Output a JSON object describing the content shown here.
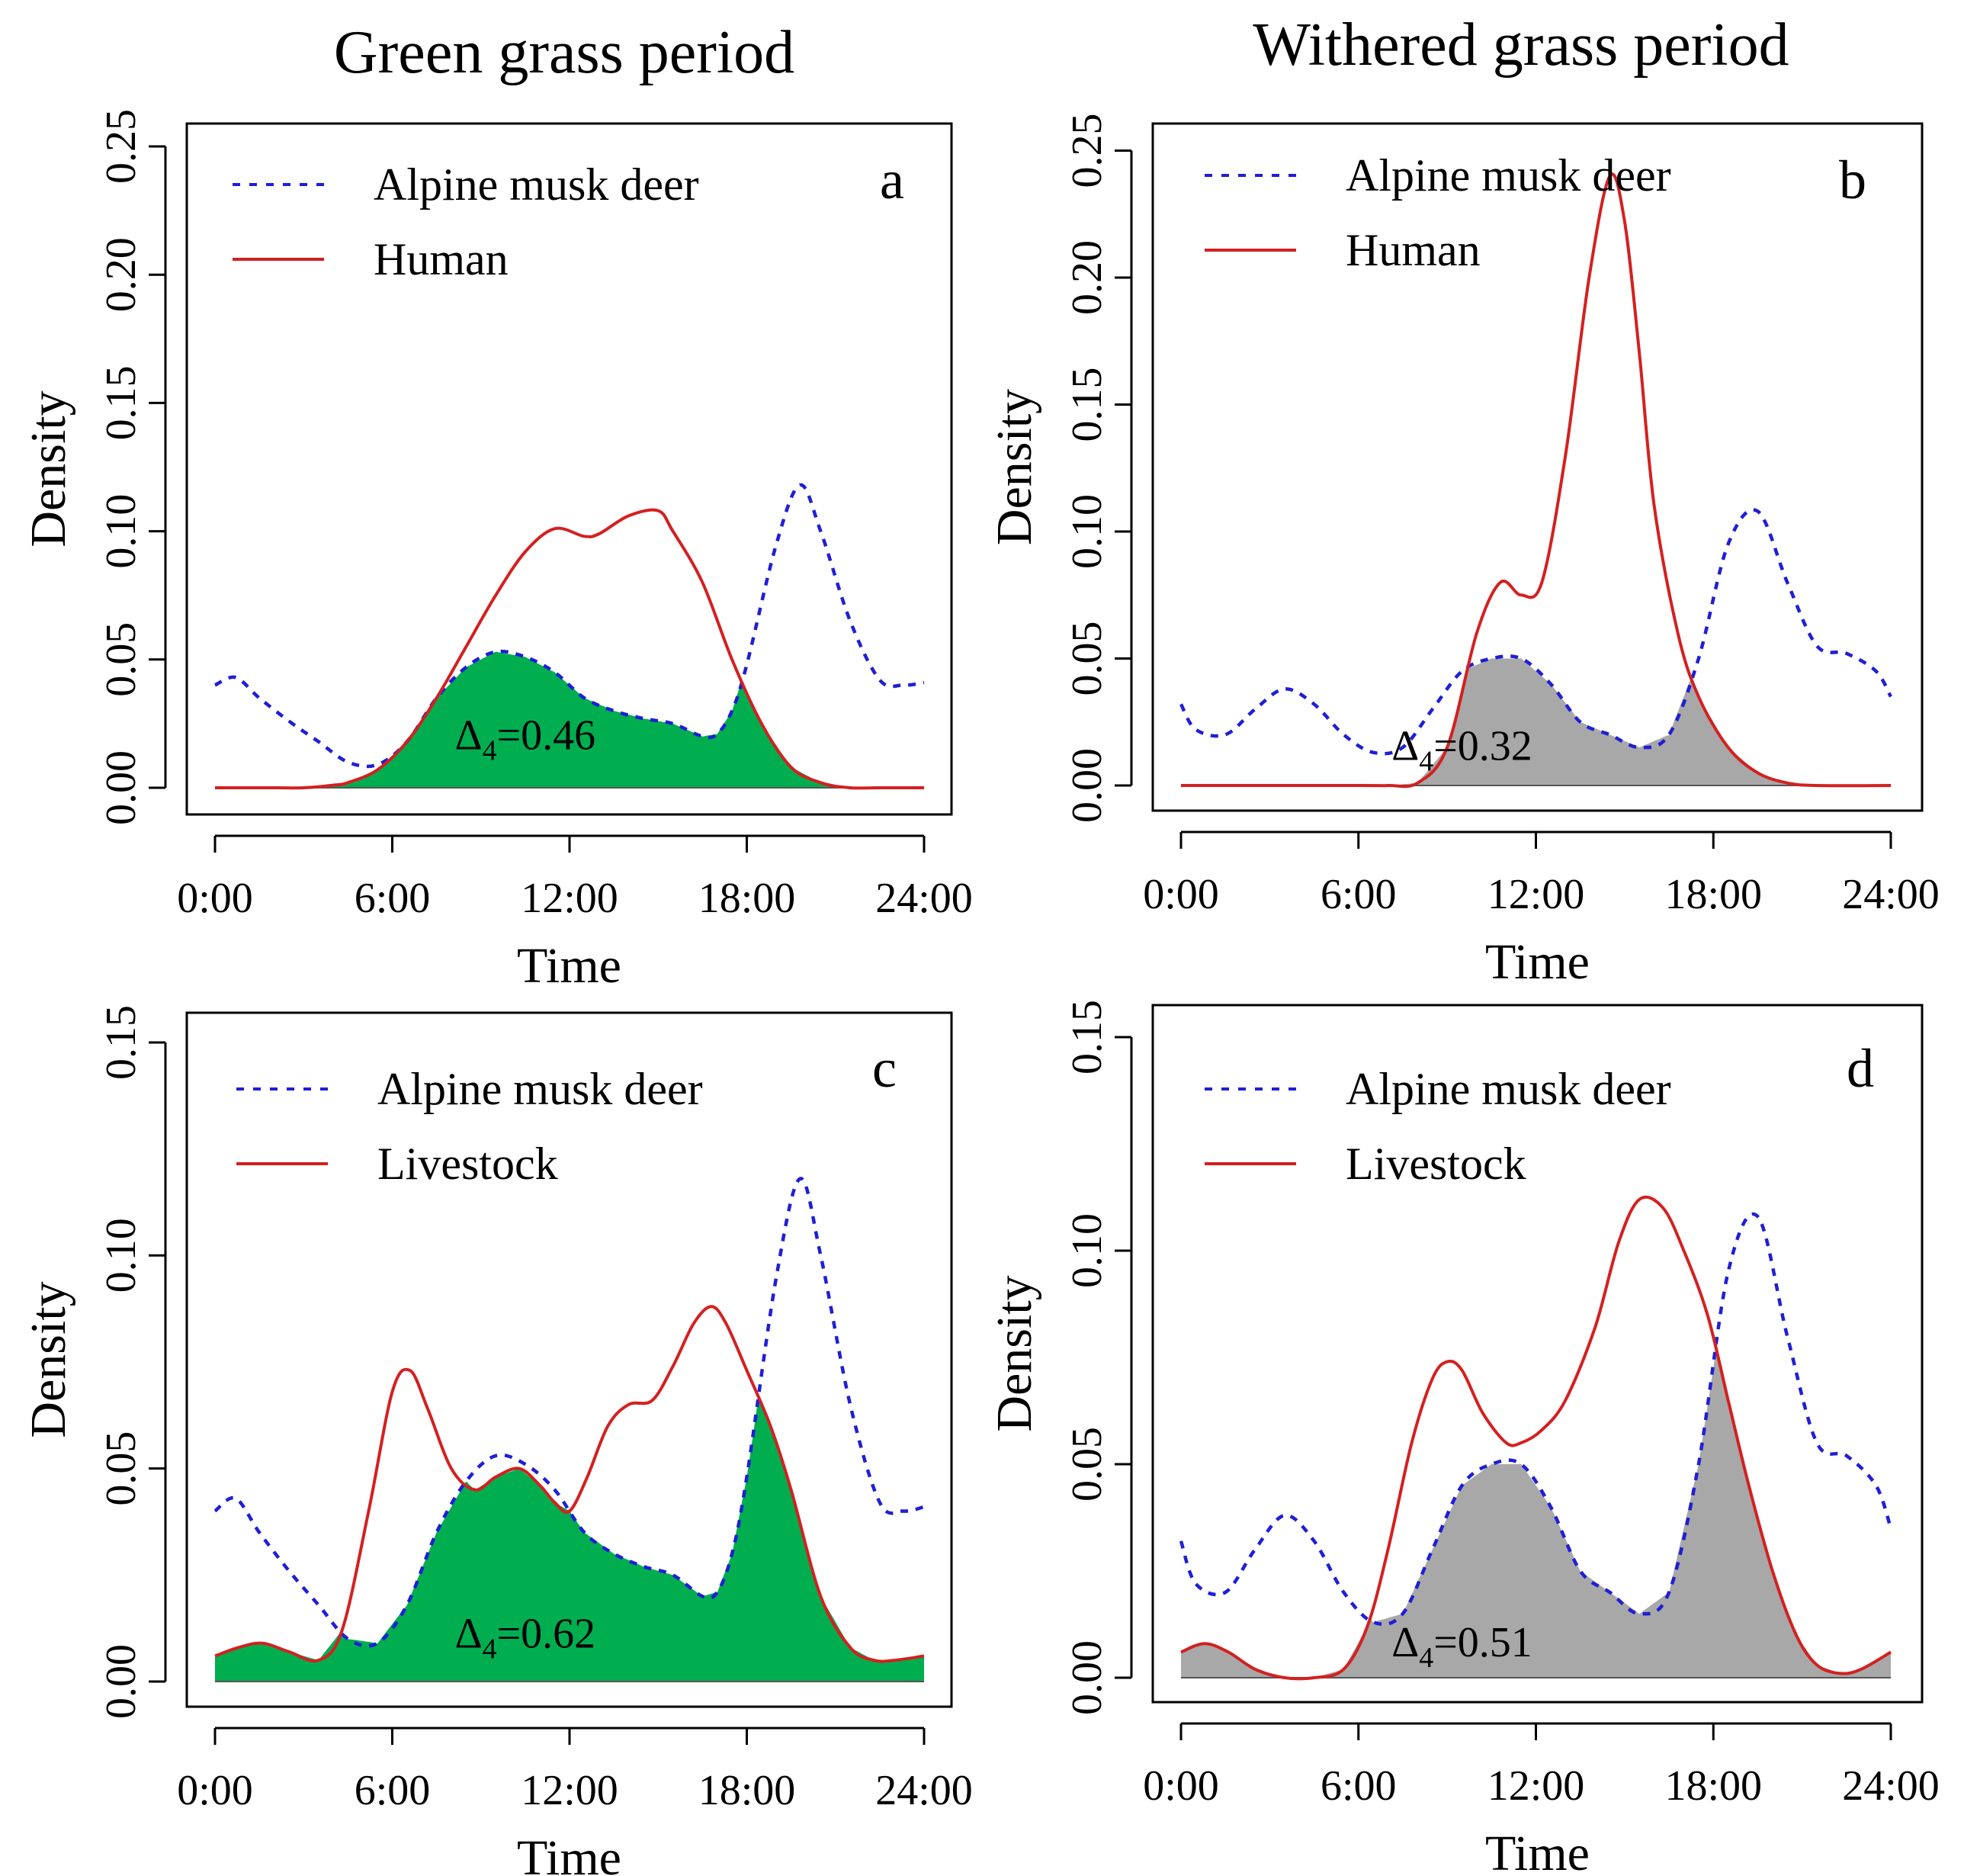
{
  "column_titles": [
    "Green grass period",
    "Withered grass period"
  ],
  "colors": {
    "musk_deer": "#1f1fd6",
    "other": "#d42020",
    "overlap_green": "#00ae4f",
    "overlap_gray": "#a8a8a8"
  },
  "chart_data": [
    {
      "type": "line",
      "panel": "a",
      "xlabel": "Time",
      "ylabel": "Density",
      "x_tick_labels": [
        "0:00",
        "6:00",
        "12:00",
        "18:00",
        "24:00"
      ],
      "y_tick_labels": [
        "0.00",
        "0.05",
        "0.10",
        "0.15",
        "0.20",
        "0.25"
      ],
      "xlim": [
        0,
        24
      ],
      "ylim": [
        0,
        0.25
      ],
      "legend_position": "top-left",
      "overlap_symbol": "Δ",
      "overlap_sub": "4",
      "overlap_value": "=0.46",
      "overlap_at": [
        10.5,
        0.015
      ],
      "overlap_color": "#00ae4f",
      "series": [
        {
          "name": "Alpine musk deer",
          "style": "dotted",
          "color": "#1f1fd6",
          "x": [
            0,
            0.7,
            1.5,
            2.5,
            3.5,
            4.5,
            5.5,
            6.5,
            7.5,
            8.5,
            9.5,
            10.5,
            11.5,
            12.5,
            13.5,
            14.5,
            15.5,
            16.5,
            17.0,
            17.5,
            18.0,
            19.0,
            19.8,
            20.5,
            21.5,
            22.5,
            23.3,
            24
          ],
          "y": [
            0.04,
            0.043,
            0.035,
            0.026,
            0.018,
            0.01,
            0.009,
            0.018,
            0.035,
            0.047,
            0.053,
            0.051,
            0.045,
            0.035,
            0.03,
            0.027,
            0.025,
            0.02,
            0.021,
            0.03,
            0.048,
            0.095,
            0.118,
            0.1,
            0.065,
            0.042,
            0.04,
            0.041
          ]
        },
        {
          "name": "Human",
          "style": "solid",
          "color": "#d42020",
          "x": [
            0,
            2,
            3,
            4,
            4.5,
            5.5,
            6.5,
            7.5,
            8.5,
            9.5,
            10.5,
            11.5,
            12.5,
            13,
            14,
            15,
            15.5,
            16.5,
            17.5,
            18.5,
            19.5,
            20.5,
            21.5,
            22.5,
            24
          ],
          "y": [
            0.0,
            0.0,
            0.0,
            0.001,
            0.002,
            0.007,
            0.018,
            0.035,
            0.055,
            0.075,
            0.092,
            0.101,
            0.098,
            0.099,
            0.106,
            0.108,
            0.1,
            0.08,
            0.05,
            0.025,
            0.008,
            0.002,
            0.0,
            0.0,
            0.0
          ]
        }
      ]
    },
    {
      "type": "line",
      "panel": "b",
      "xlabel": "Time",
      "ylabel": "Density",
      "x_tick_labels": [
        "0:00",
        "6:00",
        "12:00",
        "18:00",
        "24:00"
      ],
      "y_tick_labels": [
        "0.00",
        "0.05",
        "0.10",
        "0.15",
        "0.20",
        "0.25"
      ],
      "xlim": [
        0,
        24
      ],
      "ylim": [
        0,
        0.25
      ],
      "legend_position": "top-left",
      "overlap_symbol": "Δ",
      "overlap_sub": "4",
      "overlap_value": "=0.32",
      "overlap_at": [
        9.5,
        0.01
      ],
      "overlap_color": "#a8a8a8",
      "series": [
        {
          "name": "Alpine musk deer",
          "style": "dotted",
          "color": "#1f1fd6",
          "x": [
            0,
            0.5,
            1.5,
            2.5,
            3.5,
            4.5,
            5.5,
            6.5,
            7.5,
            8.5,
            9.5,
            10.5,
            11.5,
            12.5,
            13.5,
            14.5,
            15.5,
            16.5,
            17.5,
            18.5,
            19.5,
            20.5,
            21.5,
            22.5,
            23.5,
            24
          ],
          "y": [
            0.032,
            0.022,
            0.02,
            0.03,
            0.038,
            0.032,
            0.02,
            0.013,
            0.015,
            0.03,
            0.045,
            0.05,
            0.05,
            0.04,
            0.025,
            0.02,
            0.015,
            0.02,
            0.05,
            0.095,
            0.108,
            0.08,
            0.055,
            0.052,
            0.045,
            0.035
          ]
        },
        {
          "name": "Human",
          "style": "solid",
          "color": "#d42020",
          "x": [
            0,
            6,
            7,
            8,
            9,
            10,
            10.8,
            11.5,
            12.2,
            13,
            13.8,
            14.5,
            15,
            15.5,
            16,
            16.8,
            17.5,
            18.5,
            19.5,
            20.5,
            21.5,
            24
          ],
          "y": [
            0.0,
            0.0,
            0.0,
            0.001,
            0.015,
            0.06,
            0.08,
            0.075,
            0.08,
            0.13,
            0.2,
            0.24,
            0.222,
            0.17,
            0.11,
            0.06,
            0.035,
            0.015,
            0.005,
            0.001,
            0.0,
            0.0
          ]
        }
      ]
    },
    {
      "type": "line",
      "panel": "c",
      "xlabel": "Time",
      "ylabel": "Density",
      "x_tick_labels": [
        "0:00",
        "6:00",
        "12:00",
        "18:00",
        "24:00"
      ],
      "y_tick_labels": [
        "0.00",
        "0.05",
        "0.10",
        "0.15"
      ],
      "xlim": [
        0,
        24
      ],
      "ylim": [
        0,
        0.15
      ],
      "legend_position": "top-left",
      "overlap_symbol": "Δ",
      "overlap_sub": "4",
      "overlap_value": "=0.62",
      "overlap_at": [
        10.5,
        0.008
      ],
      "overlap_color": "#00ae4f",
      "series": [
        {
          "name": "Alpine musk deer",
          "style": "dotted",
          "color": "#1f1fd6",
          "x": [
            0,
            0.7,
            1.5,
            2.5,
            3.5,
            4.5,
            5.5,
            6.5,
            7.5,
            8.5,
            9.5,
            10.5,
            11.5,
            12.5,
            13.5,
            14.5,
            15.5,
            16.5,
            17.0,
            17.5,
            18.0,
            19.0,
            19.8,
            20.5,
            21.5,
            22.5,
            23.3,
            24
          ],
          "y": [
            0.04,
            0.043,
            0.035,
            0.026,
            0.018,
            0.01,
            0.009,
            0.018,
            0.035,
            0.047,
            0.053,
            0.051,
            0.045,
            0.035,
            0.03,
            0.027,
            0.025,
            0.02,
            0.021,
            0.03,
            0.048,
            0.095,
            0.118,
            0.1,
            0.065,
            0.042,
            0.04,
            0.041
          ]
        },
        {
          "name": "Livestock",
          "style": "solid",
          "color": "#d42020",
          "x": [
            0,
            0.8,
            1.6,
            2.5,
            3.5,
            4.3,
            5.2,
            6,
            6.6,
            7.2,
            8,
            8.8,
            9.5,
            10.3,
            11,
            11.5,
            12,
            12.6,
            13.3,
            14,
            14.8,
            15.5,
            16.2,
            16.8,
            17.3,
            18,
            18.8,
            19.5,
            20.5,
            21.5,
            22.3,
            23,
            24
          ],
          "y": [
            0.006,
            0.008,
            0.009,
            0.007,
            0.005,
            0.012,
            0.04,
            0.068,
            0.073,
            0.064,
            0.05,
            0.045,
            0.048,
            0.05,
            0.046,
            0.042,
            0.04,
            0.048,
            0.06,
            0.065,
            0.066,
            0.074,
            0.084,
            0.088,
            0.084,
            0.073,
            0.06,
            0.045,
            0.02,
            0.008,
            0.005,
            0.005,
            0.006
          ]
        }
      ]
    },
    {
      "type": "line",
      "panel": "d",
      "xlabel": "Time",
      "ylabel": "Density",
      "x_tick_labels": [
        "0:00",
        "6:00",
        "12:00",
        "18:00",
        "24:00"
      ],
      "y_tick_labels": [
        "0.00",
        "0.05",
        "0.10",
        "0.15"
      ],
      "xlim": [
        0,
        24
      ],
      "ylim": [
        0,
        0.15
      ],
      "legend_position": "top-left",
      "overlap_symbol": "Δ",
      "overlap_sub": "4",
      "overlap_value": "=0.51",
      "overlap_at": [
        9.5,
        0.005
      ],
      "overlap_color": "#a8a8a8",
      "series": [
        {
          "name": "Alpine musk deer",
          "style": "dotted",
          "color": "#1f1fd6",
          "x": [
            0,
            0.5,
            1.5,
            2.5,
            3.5,
            4.5,
            5.5,
            6.5,
            7.5,
            8.5,
            9.5,
            10.5,
            11.5,
            12.5,
            13.5,
            14.5,
            15.5,
            16.5,
            17.5,
            18.5,
            19.5,
            20.5,
            21.5,
            22.5,
            23.5,
            24
          ],
          "y": [
            0.032,
            0.022,
            0.02,
            0.03,
            0.038,
            0.032,
            0.02,
            0.013,
            0.015,
            0.03,
            0.045,
            0.05,
            0.05,
            0.04,
            0.025,
            0.02,
            0.015,
            0.02,
            0.05,
            0.095,
            0.108,
            0.08,
            0.055,
            0.052,
            0.045,
            0.035
          ]
        },
        {
          "name": "Livestock",
          "style": "solid",
          "color": "#d42020",
          "x": [
            0,
            0.8,
            1.6,
            2.5,
            3.5,
            4.5,
            5.5,
            6.3,
            7,
            7.8,
            8.5,
            9,
            9.5,
            10.2,
            11,
            11.5,
            12.2,
            13,
            14,
            14.8,
            15.5,
            16.3,
            17,
            17.8,
            18.5,
            19.2,
            20,
            20.8,
            21.5,
            22.3,
            23,
            24
          ],
          "y": [
            0.006,
            0.008,
            0.006,
            0.002,
            0.0,
            0.0,
            0.002,
            0.012,
            0.03,
            0.055,
            0.07,
            0.074,
            0.072,
            0.062,
            0.055,
            0.055,
            0.058,
            0.065,
            0.082,
            0.102,
            0.112,
            0.11,
            0.1,
            0.085,
            0.065,
            0.045,
            0.025,
            0.01,
            0.003,
            0.001,
            0.002,
            0.006
          ]
        }
      ]
    }
  ]
}
